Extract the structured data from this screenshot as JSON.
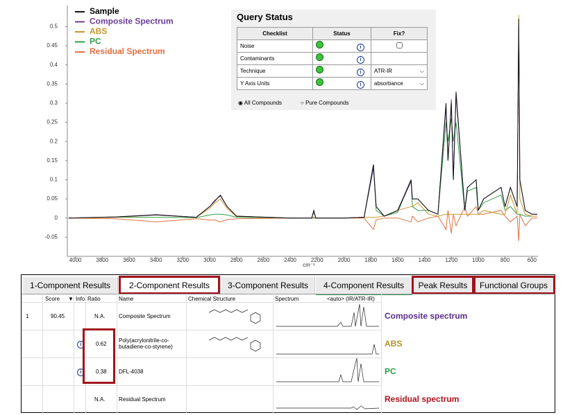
{
  "chart_data": {
    "type": "line",
    "x_label": "cm⁻¹",
    "x": [
      4050,
      3700,
      3400,
      3100,
      3000,
      2960,
      2920,
      2870,
      2800,
      2400,
      2240,
      2225,
      2210,
      2000,
      1850,
      1780,
      1760,
      1700,
      1600,
      1500,
      1490,
      1450,
      1370,
      1300,
      1240,
      1225,
      1200,
      1185,
      1165,
      1100,
      1080,
      1015,
      1000,
      960,
      830,
      800,
      760,
      710,
      698,
      690,
      650,
      600,
      560
    ],
    "series": [
      {
        "name": "Sample",
        "color": "#111111",
        "values": [
          0,
          0.003,
          0.008,
          0.002,
          0.03,
          0.045,
          0.06,
          0.03,
          0.005,
          0,
          0,
          0.02,
          0,
          0,
          0.002,
          0.14,
          0.03,
          0.005,
          0.02,
          0.1,
          0.05,
          0.05,
          0.02,
          0.01,
          0.3,
          0.15,
          0.3,
          0.1,
          0.33,
          0.02,
          0.08,
          0.1,
          0.02,
          0.05,
          0.08,
          0.03,
          0.08,
          0.03,
          0.52,
          0.1,
          0.02,
          0.01,
          0.01
        ]
      },
      {
        "name": "Composite Spectrum",
        "color": "#6a3d9a",
        "values": [
          0,
          0.003,
          0.009,
          0.002,
          0.03,
          0.047,
          0.058,
          0.03,
          0.005,
          0,
          0,
          0.018,
          0,
          0,
          0.002,
          0.13,
          0.03,
          0.005,
          0.02,
          0.095,
          0.05,
          0.05,
          0.02,
          0.01,
          0.29,
          0.15,
          0.31,
          0.1,
          0.32,
          0.02,
          0.08,
          0.1,
          0.02,
          0.05,
          0.08,
          0.03,
          0.08,
          0.03,
          0.5,
          0.1,
          0.02,
          0.01,
          0.01
        ]
      },
      {
        "name": "ABS",
        "color": "#c8962a",
        "values": [
          0,
          0.002,
          0.008,
          0.002,
          0.025,
          0.04,
          0.05,
          0.025,
          0.004,
          0,
          0,
          0.015,
          0,
          0,
          0.002,
          0.002,
          0.002,
          0.005,
          0.02,
          0.03,
          0.03,
          0.04,
          0.01,
          0.005,
          0.01,
          0.01,
          0.01,
          0.01,
          0.01,
          0.01,
          0.01,
          0.01,
          0.01,
          0.02,
          0.01,
          0.01,
          0.06,
          0.01,
          0.53,
          0.05,
          0.01,
          0.005,
          0.005
        ]
      },
      {
        "name": "PC",
        "color": "#2e9e46",
        "values": [
          0,
          0.002,
          0.002,
          0.001,
          0.008,
          0.01,
          0.01,
          0.008,
          0.002,
          0,
          0,
          0,
          0,
          0,
          0.002,
          0.14,
          0.02,
          0.005,
          0.015,
          0.1,
          0.03,
          0.02,
          0.02,
          0.01,
          0.25,
          0.2,
          0.26,
          0.2,
          0.25,
          0.02,
          0.07,
          0.08,
          0.02,
          0.04,
          0.06,
          0.02,
          0.03,
          0.01,
          0.01,
          0.01,
          0.005,
          0.005,
          0.005
        ]
      },
      {
        "name": "Residual Spectrum",
        "color": "#e07040",
        "values": [
          0,
          -0.002,
          -0.01,
          -0.002,
          -0.005,
          -0.005,
          -0.01,
          -0.004,
          -0.002,
          0,
          0,
          0.002,
          0,
          0,
          0,
          -0.03,
          -0.005,
          0,
          0,
          -0.01,
          0.005,
          -0.01,
          0,
          0.005,
          -0.03,
          0.02,
          -0.04,
          0.01,
          -0.02,
          0.03,
          0.005,
          0.03,
          0.01,
          0.01,
          0.02,
          0.005,
          -0.01,
          0.005,
          -0.06,
          0.01,
          -0.02,
          0,
          0
        ]
      }
    ],
    "xlim": [
      4060,
      555
    ],
    "xticks": [
      4000,
      3800,
      3600,
      3400,
      3200,
      3000,
      2800,
      2600,
      2400,
      2200,
      2000,
      1800,
      1600,
      1400,
      1200,
      1000,
      800,
      600
    ],
    "ylim": [
      -0.1,
      0.555
    ],
    "yticks": [
      -0.05,
      0,
      0.05,
      0.1,
      0.15,
      0.2,
      0.25,
      0.3,
      0.35,
      0.4,
      0.45,
      0.5
    ],
    "legend": "upper left"
  },
  "query_status": {
    "title": "Query Status",
    "columns": [
      "Checklist",
      "Status",
      "Fix?"
    ],
    "rows": [
      {
        "label": "Noise"
      },
      {
        "label": "Contaminants"
      },
      {
        "label": "Technique",
        "fix": "ATR-IR"
      },
      {
        "label": "Y Axis Units",
        "fix": "absorbance"
      }
    ],
    "options": [
      "All Compounds",
      "Pure Compounds"
    ]
  },
  "results": {
    "tabs": [
      "1-Component Results",
      "2-Component Results",
      "3-Component Results",
      "4-Component Results",
      "Peak Results",
      "Functional Groups"
    ],
    "columns": [
      "Score",
      "Info",
      "Ratio",
      "Name",
      "Chemical Structure",
      "Spectrum"
    ],
    "spectrum_hint": "<auto> (IR/ATR-IR)",
    "rows": [
      {
        "index": 1,
        "score": 90.45,
        "ratio": "N.A.",
        "name": "Composite Spectrum",
        "annotation": "Composite spectrum"
      },
      {
        "ratio": 0.62,
        "name": "Poly(acrylonitrile-co-butadiene-co-styrene)",
        "annotation": "ABS"
      },
      {
        "ratio": 0.38,
        "name": "DFL-4038",
        "annotation": "PC"
      },
      {
        "ratio": "N.A.",
        "name": "Residual Spectrum",
        "annotation": "Residual spectrum"
      }
    ]
  }
}
